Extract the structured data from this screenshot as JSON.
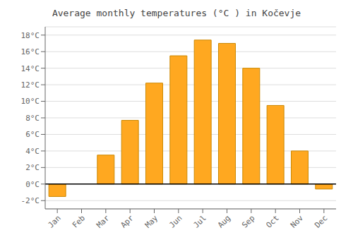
{
  "chart_data": {
    "type": "bar",
    "title": "Average monthly temperatures (°C ) in Kočevje",
    "categories": [
      "Jan",
      "Feb",
      "Mar",
      "Apr",
      "May",
      "Jun",
      "Jul",
      "Aug",
      "Sep",
      "Oct",
      "Nov",
      "Dec"
    ],
    "values": [
      -1.5,
      0,
      3.5,
      7.7,
      12.2,
      15.5,
      17.4,
      17.0,
      14.0,
      9.5,
      4.0,
      -0.6
    ],
    "color": "#FFA820",
    "ylim": [
      -3,
      19
    ],
    "yticks": [
      {
        "value": -2,
        "label": "-2°C"
      },
      {
        "value": 0,
        "label": "0°C"
      },
      {
        "value": 2,
        "label": "2°C"
      },
      {
        "value": 4,
        "label": "4°C"
      },
      {
        "value": 6,
        "label": "6°C"
      },
      {
        "value": 8,
        "label": "8°C"
      },
      {
        "value": 10,
        "label": "10°C"
      },
      {
        "value": 12,
        "label": "12°C"
      },
      {
        "value": 14,
        "label": "14°C"
      },
      {
        "value": 16,
        "label": "16°C"
      },
      {
        "value": 18,
        "label": "18°C"
      }
    ],
    "grid": true
  }
}
